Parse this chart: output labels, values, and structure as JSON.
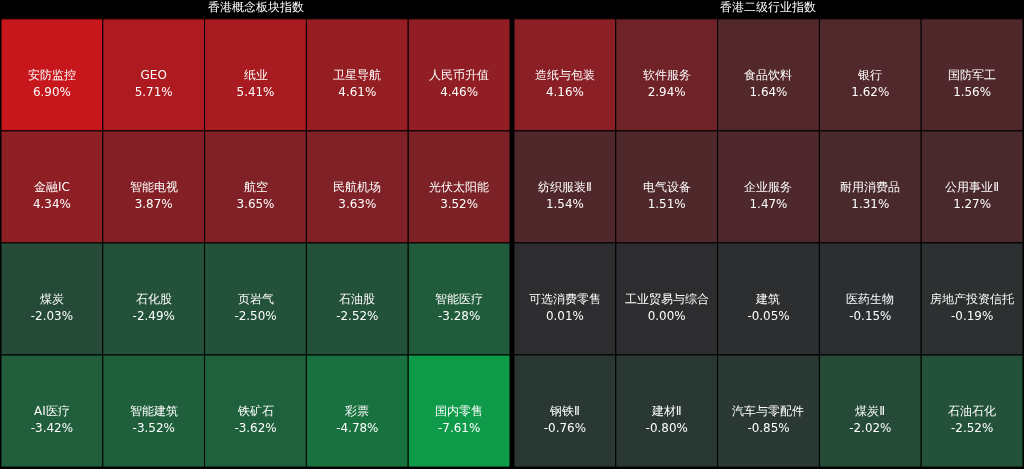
{
  "chart_data": [
    {
      "type": "other",
      "title": "香港概念板块指数",
      "categories": [
        "安防监控",
        "GEO",
        "纸业",
        "卫星导航",
        "人民币升值",
        "金融IC",
        "智能电视",
        "航空",
        "民航机场",
        "光伏太阳能",
        "煤炭",
        "石化股",
        "页岩气",
        "石油股",
        "智能医疗",
        "AI医疗",
        "智能建筑",
        "铁矿石",
        "彩票",
        "国内零售"
      ],
      "values": [
        6.9,
        5.71,
        5.41,
        4.61,
        4.46,
        4.34,
        3.87,
        3.65,
        3.63,
        3.52,
        -2.03,
        -2.49,
        -2.5,
        -2.52,
        -3.28,
        -3.42,
        -3.52,
        -3.62,
        -4.78,
        -7.61
      ],
      "value_labels": [
        "6.90%",
        "5.71%",
        "5.41%",
        "4.61%",
        "4.46%",
        "4.34%",
        "3.87%",
        "3.65%",
        "3.63%",
        "3.52%",
        "-2.03%",
        "-2.49%",
        "-2.50%",
        "-2.52%",
        "-3.28%",
        "-3.42%",
        "-3.52%",
        "-3.62%",
        "-4.78%",
        "-7.61%"
      ]
    },
    {
      "type": "other",
      "title": "香港二级行业指数",
      "categories": [
        "造纸与包装",
        "软件服务",
        "食品饮料",
        "银行",
        "国防军工",
        "纺织服装Ⅱ",
        "电气设备",
        "企业服务",
        "耐用消费品",
        "公用事业Ⅱ",
        "可选消费零售",
        "工业贸易与综合",
        "建筑",
        "医药生物",
        "房地产投资信托",
        "钢铁Ⅱ",
        "建材Ⅱ",
        "汽车与零配件",
        "煤炭Ⅱ",
        "石油石化"
      ],
      "values": [
        4.16,
        2.94,
        1.64,
        1.62,
        1.56,
        1.54,
        1.51,
        1.47,
        1.31,
        1.27,
        0.01,
        0.0,
        -0.05,
        -0.15,
        -0.19,
        -0.76,
        -0.8,
        -0.85,
        -2.02,
        -2.52
      ],
      "value_labels": [
        "4.16%",
        "2.94%",
        "1.64%",
        "1.62%",
        "1.56%",
        "1.54%",
        "1.51%",
        "1.47%",
        "1.31%",
        "1.27%",
        "0.01%",
        "0.00%",
        "-0.05%",
        "-0.15%",
        "-0.19%",
        "-0.76%",
        "-0.80%",
        "-0.85%",
        "-2.02%",
        "-2.52%"
      ]
    }
  ]
}
